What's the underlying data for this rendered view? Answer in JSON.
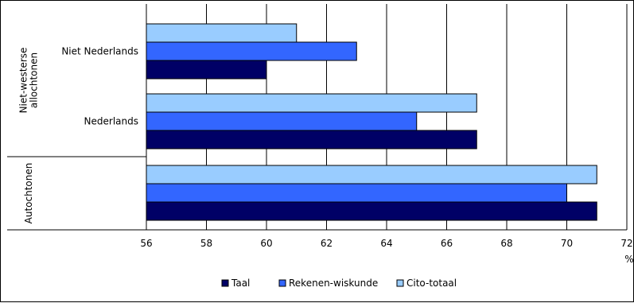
{
  "chart_data": {
    "type": "bar",
    "orientation": "horizontal",
    "title": "",
    "xlabel": "",
    "ylabel": "",
    "x_unit": "%",
    "xlim": [
      56,
      72
    ],
    "x_ticks": [
      56,
      58,
      60,
      62,
      64,
      66,
      68,
      70,
      72
    ],
    "grid": true,
    "legend_position": "bottom",
    "categories": [
      {
        "group": "Niet-westerse allochtonen",
        "label": "Niet Nederlands"
      },
      {
        "group": "Niet-westerse allochtonen",
        "label": "Nederlands"
      },
      {
        "group": "Autochtonen",
        "label": ""
      }
    ],
    "series": [
      {
        "name": "Taal",
        "color": "#000066",
        "values": [
          60,
          67,
          71
        ]
      },
      {
        "name": "Rekenen-wiskunde",
        "color": "#3366ff",
        "values": [
          63,
          65,
          70
        ]
      },
      {
        "name": "Cito-totaal",
        "color": "#99ccff",
        "values": [
          61,
          67,
          71
        ]
      }
    ]
  }
}
